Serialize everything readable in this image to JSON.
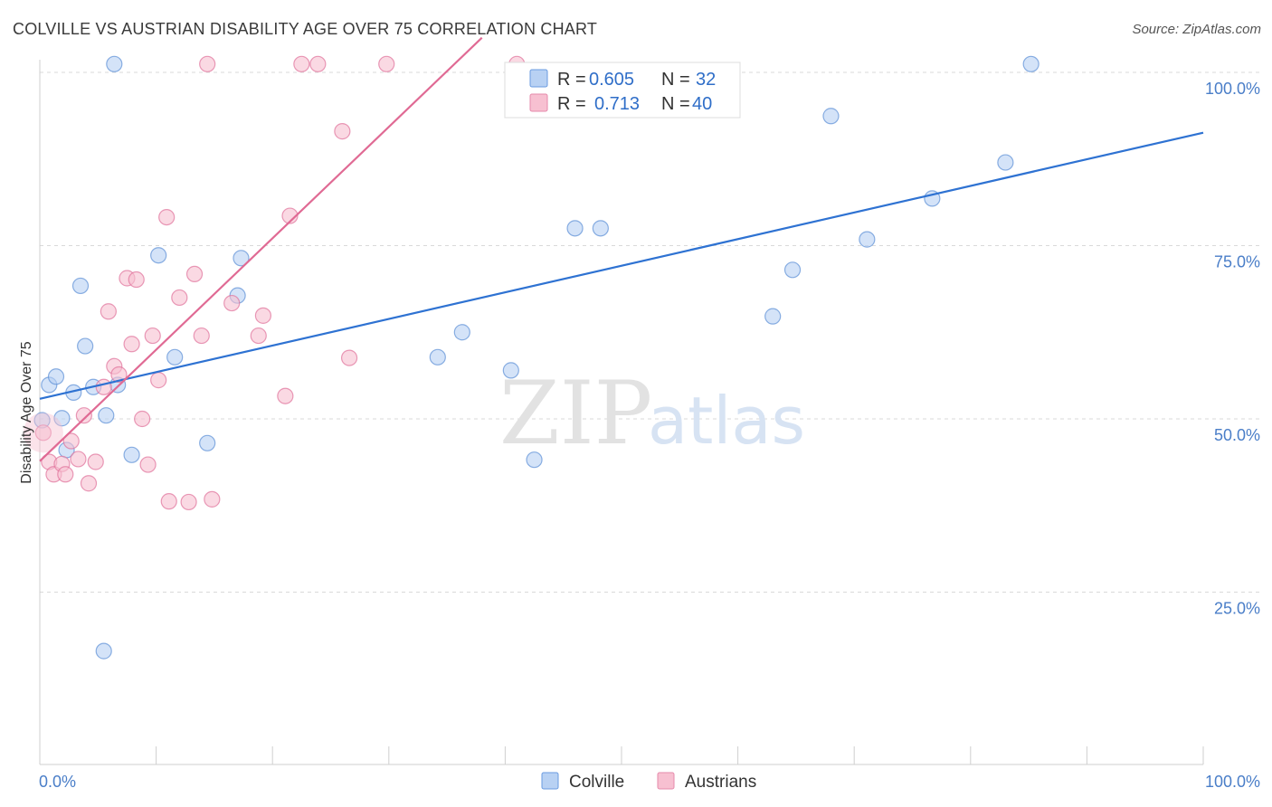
{
  "title": "COLVILLE VS AUSTRIAN DISABILITY AGE OVER 75 CORRELATION CHART",
  "source": "Source: ZipAtlas.com",
  "chart_data": {
    "type": "scatter",
    "title": "COLVILLE VS AUSTRIAN DISABILITY AGE OVER 75 CORRELATION CHART",
    "xlabel": "",
    "ylabel": "Disability Age Over 75",
    "xlim": [
      0,
      100
    ],
    "ylim": [
      0,
      105
    ],
    "x_tick_labels": [
      "0.0%",
      "100.0%"
    ],
    "y_ticks": [
      25,
      50,
      75,
      100
    ],
    "y_tick_labels": [
      "25.0%",
      "50.0%",
      "75.0%",
      "100.0%"
    ],
    "grid": true,
    "series": [
      {
        "name": "Colville",
        "color": "#5b8fd6",
        "fill": "#b8d1f3",
        "R": "0.605",
        "N": "32",
        "trend": {
          "x0": 0,
          "y0": 52.9,
          "x1": 100,
          "y1": 91.3
        },
        "points": [
          [
            0.2,
            49.8
          ],
          [
            0.8,
            54.9
          ],
          [
            1.4,
            56.1
          ],
          [
            1.9,
            50.1
          ],
          [
            2.3,
            45.5
          ],
          [
            2.9,
            53.8
          ],
          [
            3.5,
            69.2
          ],
          [
            3.9,
            60.5
          ],
          [
            4.6,
            54.6
          ],
          [
            5.5,
            16.5
          ],
          [
            5.7,
            50.5
          ],
          [
            6.4,
            101.2
          ],
          [
            6.7,
            54.9
          ],
          [
            7.9,
            44.8
          ],
          [
            10.2,
            73.6
          ],
          [
            11.6,
            58.9
          ],
          [
            14.4,
            46.5
          ],
          [
            17.0,
            67.8
          ],
          [
            17.3,
            73.2
          ],
          [
            34.2,
            58.9
          ],
          [
            36.3,
            62.5
          ],
          [
            40.5,
            57.0
          ],
          [
            42.5,
            44.1
          ],
          [
            46.0,
            77.5
          ],
          [
            48.2,
            77.5
          ],
          [
            63.0,
            64.8
          ],
          [
            64.7,
            71.5
          ],
          [
            68.0,
            93.7
          ],
          [
            71.1,
            75.9
          ],
          [
            76.7,
            81.8
          ],
          [
            83.0,
            87.0
          ],
          [
            85.2,
            101.2
          ]
        ]
      },
      {
        "name": "Austrians",
        "color": "#e0709a",
        "fill": "#f7c0d1",
        "R": "0.713",
        "N": "40",
        "trend": {
          "x0": 0,
          "y0": 43.9,
          "x1": 38.0,
          "y1": 105.0
        },
        "points": [
          [
            0.3,
            48.0
          ],
          [
            0.8,
            43.8
          ],
          [
            1.2,
            42.0
          ],
          [
            1.9,
            43.5
          ],
          [
            2.2,
            42.0
          ],
          [
            2.7,
            46.8
          ],
          [
            3.3,
            44.2
          ],
          [
            3.8,
            50.5
          ],
          [
            4.2,
            40.7
          ],
          [
            4.8,
            43.8
          ],
          [
            5.5,
            54.6
          ],
          [
            5.9,
            65.5
          ],
          [
            6.4,
            57.6
          ],
          [
            6.8,
            56.4
          ],
          [
            7.5,
            70.3
          ],
          [
            7.9,
            60.8
          ],
          [
            8.3,
            70.1
          ],
          [
            8.8,
            50.0
          ],
          [
            9.3,
            43.4
          ],
          [
            9.7,
            62.0
          ],
          [
            10.2,
            55.6
          ],
          [
            10.9,
            79.1
          ],
          [
            11.1,
            38.1
          ],
          [
            12.0,
            67.5
          ],
          [
            12.8,
            38.0
          ],
          [
            13.3,
            70.9
          ],
          [
            13.9,
            62.0
          ],
          [
            14.4,
            101.2
          ],
          [
            14.8,
            38.4
          ],
          [
            16.5,
            66.7
          ],
          [
            18.8,
            62.0
          ],
          [
            19.2,
            64.9
          ],
          [
            21.1,
            53.3
          ],
          [
            21.5,
            79.3
          ],
          [
            22.5,
            101.2
          ],
          [
            23.9,
            101.2
          ],
          [
            26.0,
            91.5
          ],
          [
            26.6,
            58.8
          ],
          [
            29.8,
            101.2
          ],
          [
            41.0,
            101.2
          ]
        ]
      }
    ]
  },
  "legend": {
    "r_label": "R =",
    "n_label": "N =",
    "rows": [
      {
        "R": "0.605",
        "N": "32",
        "color": "#b8d1f3",
        "stroke": "#6a9be0"
      },
      {
        "R": "0.713",
        "N": "40",
        "color": "#f7c0d1",
        "stroke": "#e68aab"
      }
    ]
  },
  "bottom_legend": [
    {
      "label": "Colville",
      "color": "#b8d1f3",
      "stroke": "#6a9be0"
    },
    {
      "label": "Austrians",
      "color": "#f7c0d1",
      "stroke": "#e68aab"
    }
  ],
  "watermark": {
    "zip": "ZIP",
    "atlas": "atlas"
  }
}
